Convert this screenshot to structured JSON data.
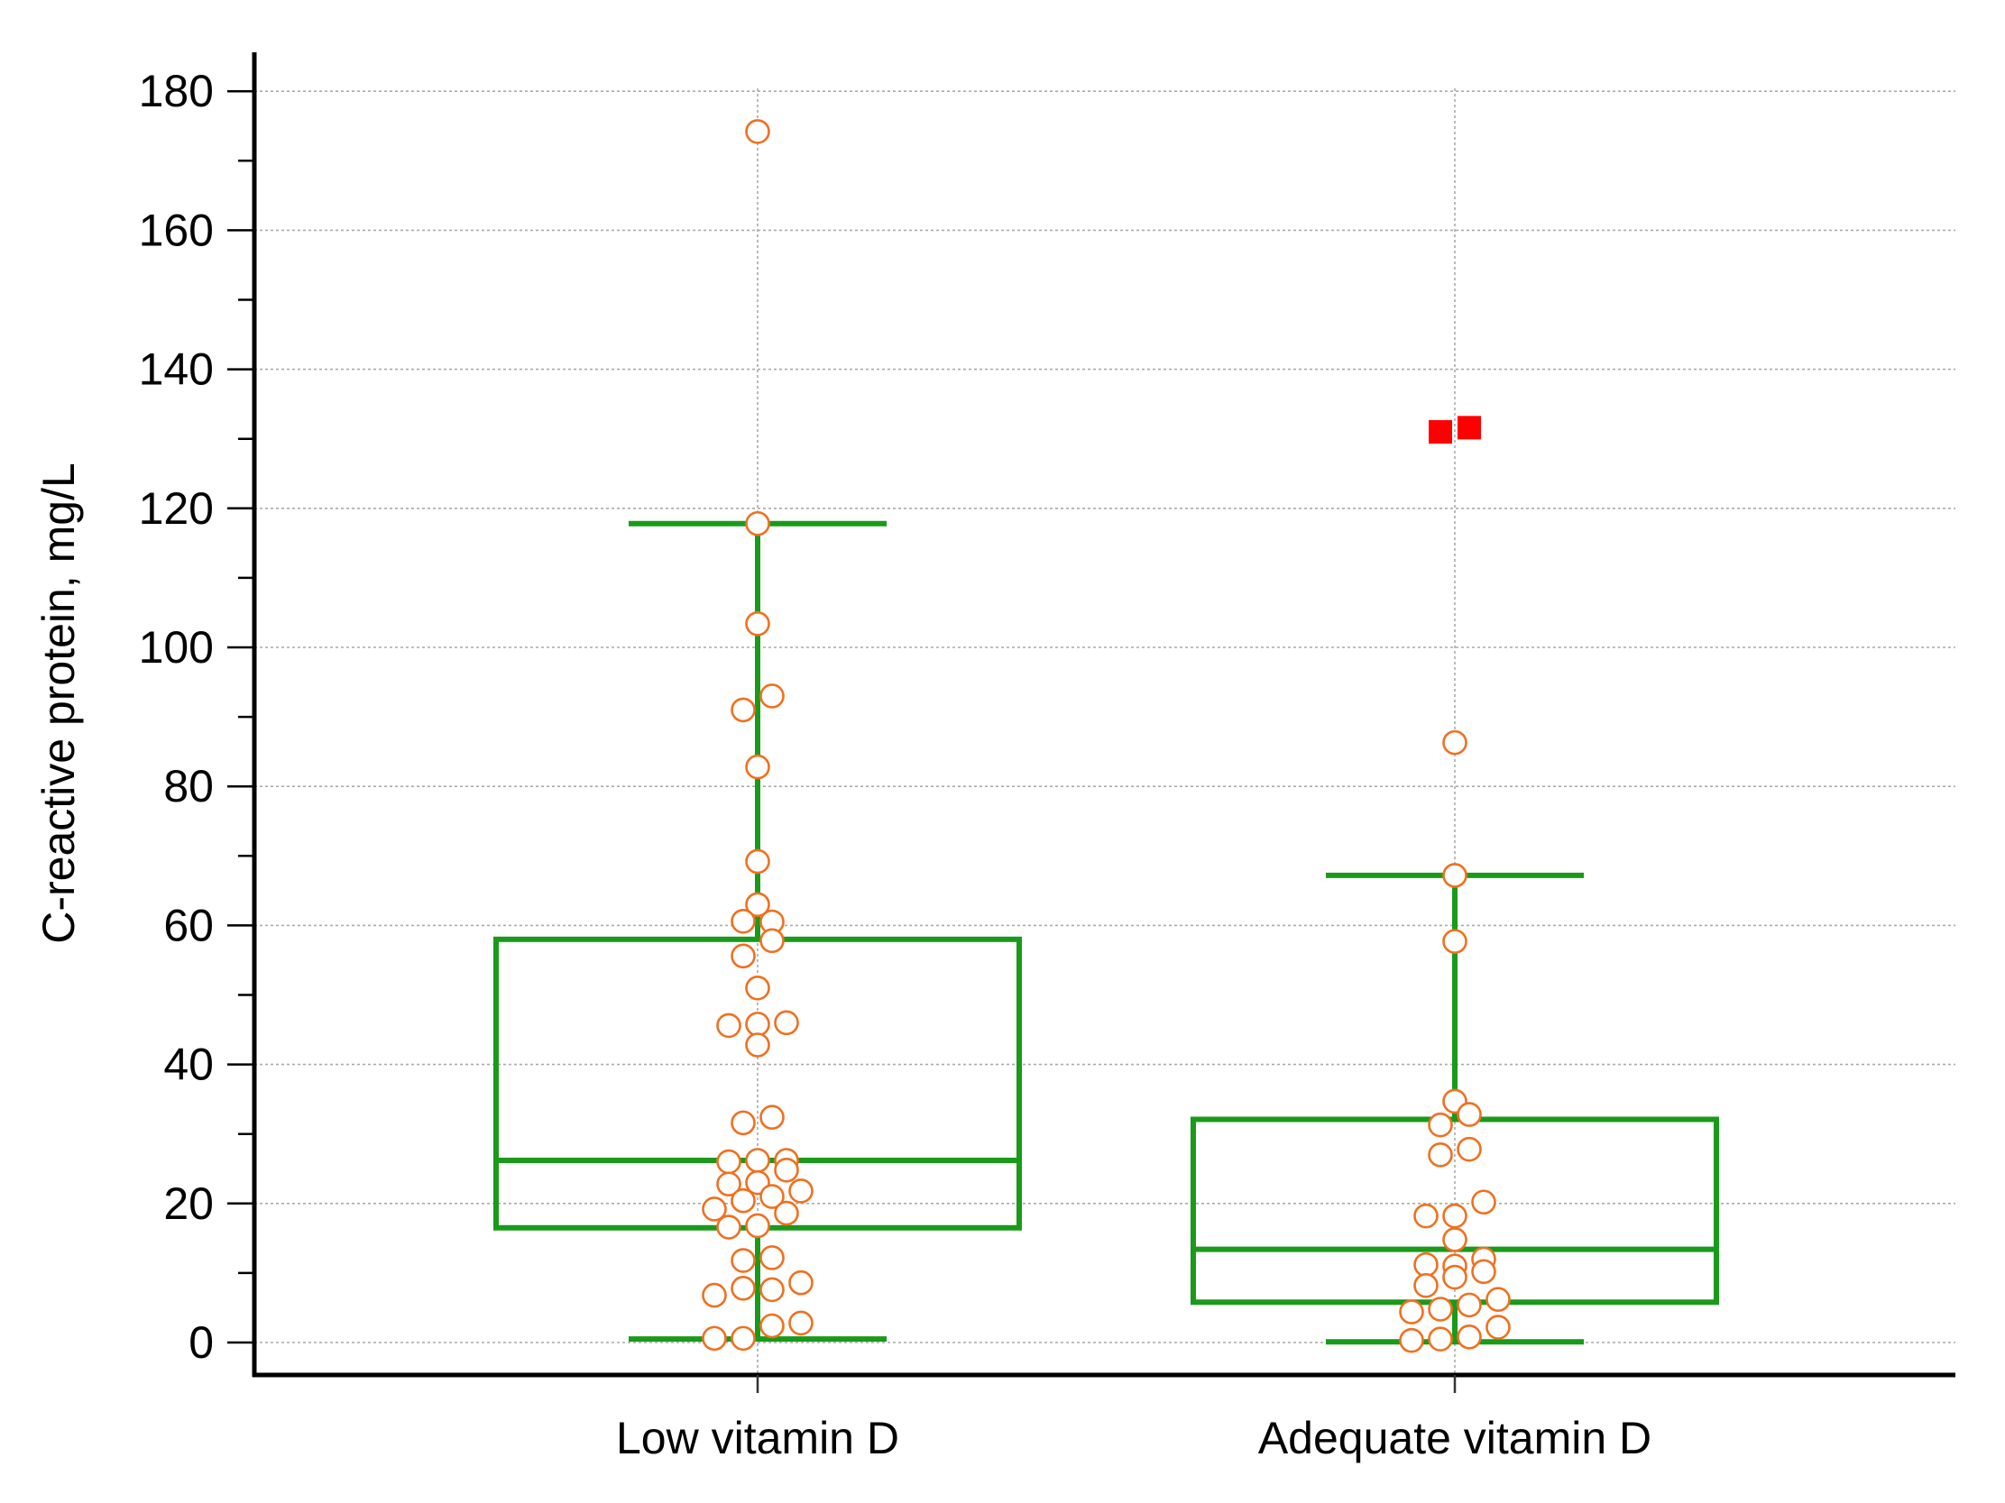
{
  "chart_data": {
    "type": "box",
    "title": "",
    "xlabel": "",
    "ylabel": "C-reactive protein, mg/L",
    "ylim": [
      -5,
      185
    ],
    "yticks": [
      0,
      20,
      40,
      60,
      80,
      100,
      120,
      140,
      160,
      180
    ],
    "grid": true,
    "colors": {
      "box": "#1a9a1a",
      "point": "#f07020",
      "outlier": "#ff0000",
      "axis": "#000000",
      "grid": "#aaaaaa"
    },
    "categories": [
      "Low vitamin D",
      "Adequate vitamin D"
    ],
    "boxes": [
      {
        "name": "Low vitamin D",
        "whisker_low": 0.5,
        "q1": 16.5,
        "median": 26.2,
        "q3": 58.0,
        "whisker_high": 117.8,
        "points": [
          {
            "offset": 0,
            "value": 174.2
          },
          {
            "offset": 0,
            "value": 117.8
          },
          {
            "offset": 0,
            "value": 103.4
          },
          {
            "offset": 0.5,
            "value": 93.0
          },
          {
            "offset": -0.5,
            "value": 91.0
          },
          {
            "offset": 0,
            "value": 82.8
          },
          {
            "offset": 0,
            "value": 69.2
          },
          {
            "offset": 0,
            "value": 63.0
          },
          {
            "offset": -0.5,
            "value": 60.6
          },
          {
            "offset": 0.5,
            "value": 60.5
          },
          {
            "offset": 0.5,
            "value": 57.8
          },
          {
            "offset": -0.5,
            "value": 55.6
          },
          {
            "offset": 0,
            "value": 51.0
          },
          {
            "offset": -1,
            "value": 45.6
          },
          {
            "offset": 0,
            "value": 45.8
          },
          {
            "offset": 1,
            "value": 46.0
          },
          {
            "offset": 0,
            "value": 42.8
          },
          {
            "offset": 0.5,
            "value": 32.4
          },
          {
            "offset": -0.5,
            "value": 31.6
          },
          {
            "offset": -1,
            "value": 26.0
          },
          {
            "offset": 0,
            "value": 26.2
          },
          {
            "offset": 1,
            "value": 26.2
          },
          {
            "offset": 1,
            "value": 24.8
          },
          {
            "offset": -1,
            "value": 22.8
          },
          {
            "offset": 0,
            "value": 23.0
          },
          {
            "offset": 1.5,
            "value": 21.8
          },
          {
            "offset": 0.5,
            "value": 21.0
          },
          {
            "offset": -0.5,
            "value": 20.4
          },
          {
            "offset": -1.5,
            "value": 19.2
          },
          {
            "offset": 1,
            "value": 18.6
          },
          {
            "offset": -1,
            "value": 16.6
          },
          {
            "offset": 0,
            "value": 16.8
          },
          {
            "offset": 0.5,
            "value": 12.2
          },
          {
            "offset": -0.5,
            "value": 11.8
          },
          {
            "offset": 1.5,
            "value": 8.6
          },
          {
            "offset": -0.5,
            "value": 7.8
          },
          {
            "offset": 0.5,
            "value": 7.6
          },
          {
            "offset": -1.5,
            "value": 6.8
          },
          {
            "offset": 1.5,
            "value": 2.8
          },
          {
            "offset": 0.5,
            "value": 2.4
          },
          {
            "offset": -1.5,
            "value": 0.6
          },
          {
            "offset": -0.5,
            "value": 0.6
          }
        ],
        "outliers": []
      },
      {
        "name": "Adequate vitamin D",
        "whisker_low": 0.1,
        "q1": 5.8,
        "median": 13.4,
        "q3": 32.1,
        "whisker_high": 67.2,
        "points": [
          {
            "offset": 0,
            "value": 86.3
          },
          {
            "offset": 0,
            "value": 67.2
          },
          {
            "offset": 0,
            "value": 57.7
          },
          {
            "offset": 0,
            "value": 34.7
          },
          {
            "offset": 0.5,
            "value": 32.8
          },
          {
            "offset": -0.5,
            "value": 31.3
          },
          {
            "offset": 0.5,
            "value": 27.8
          },
          {
            "offset": -0.5,
            "value": 27.0
          },
          {
            "offset": 1,
            "value": 20.2
          },
          {
            "offset": -1,
            "value": 18.2
          },
          {
            "offset": 0,
            "value": 18.2
          },
          {
            "offset": 0,
            "value": 14.8
          },
          {
            "offset": 1,
            "value": 12.0
          },
          {
            "offset": -1,
            "value": 11.2
          },
          {
            "offset": 0,
            "value": 11.0
          },
          {
            "offset": 1,
            "value": 10.2
          },
          {
            "offset": 0,
            "value": 9.4
          },
          {
            "offset": -1,
            "value": 8.2
          },
          {
            "offset": 1.5,
            "value": 6.2
          },
          {
            "offset": 0.5,
            "value": 5.4
          },
          {
            "offset": -0.5,
            "value": 4.8
          },
          {
            "offset": -1.5,
            "value": 4.4
          },
          {
            "offset": 1.5,
            "value": 2.2
          },
          {
            "offset": 0.5,
            "value": 0.8
          },
          {
            "offset": -0.5,
            "value": 0.5
          },
          {
            "offset": -1.5,
            "value": 0.3
          }
        ],
        "outliers": [
          {
            "offset": -0.5,
            "value": 131.0
          },
          {
            "offset": 0.5,
            "value": 131.6
          }
        ]
      }
    ]
  }
}
